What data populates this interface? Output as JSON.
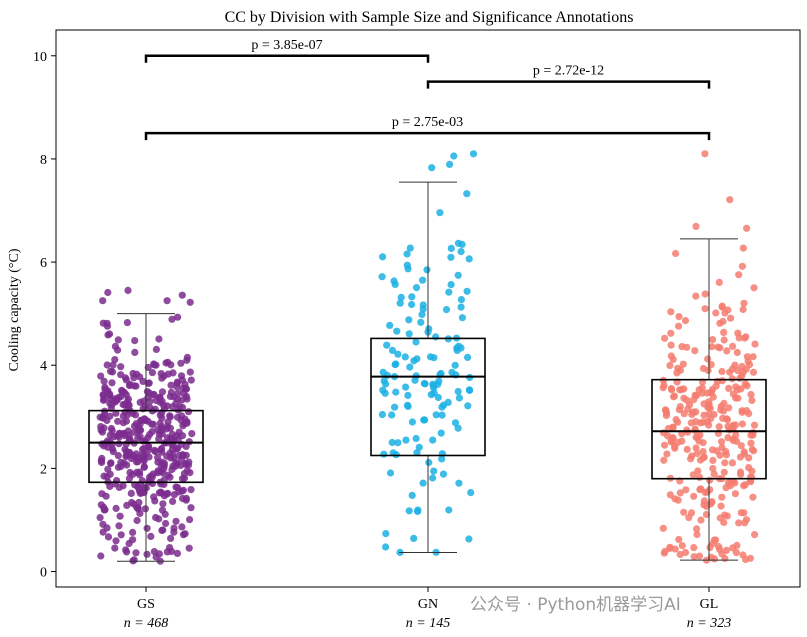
{
  "chart_data": {
    "type": "box",
    "title": "CC by Division with Sample Size and Significance Annotations",
    "xlabel": "",
    "ylabel": "Cooling capacity (°C)",
    "ylim": [
      -0.3,
      10.5
    ],
    "yticks": [
      0,
      2,
      4,
      6,
      8,
      10
    ],
    "categories": [
      "GS",
      "GN",
      "GL"
    ],
    "sample_labels": [
      "n = 468",
      "n = 145",
      "n = 323"
    ],
    "colors": [
      "#7B2D8E",
      "#1BB0E3",
      "#F47C70"
    ],
    "boxes": [
      {
        "name": "GS",
        "n": 468,
        "min": 0.2,
        "q1": 1.73,
        "median": 2.5,
        "q3": 3.12,
        "max": 5.0,
        "points_max": 5.45
      },
      {
        "name": "GN",
        "n": 145,
        "min": 0.37,
        "q1": 2.25,
        "median": 3.78,
        "q3": 4.52,
        "max": 7.55,
        "points_max": 8.1
      },
      {
        "name": "GL",
        "n": 323,
        "min": 0.22,
        "q1": 1.8,
        "median": 2.72,
        "q3": 3.72,
        "max": 6.45,
        "points_max": 8.1
      }
    ],
    "significance": [
      {
        "from": 0,
        "to": 1,
        "y": 10.0,
        "label": "p = 3.85e-07"
      },
      {
        "from": 1,
        "to": 2,
        "y": 9.5,
        "label": "p = 2.72e-12"
      },
      {
        "from": 0,
        "to": 2,
        "y": 8.5,
        "label": "p = 2.75e-03"
      }
    ]
  },
  "watermark": "公众号 · Python机器学习AI"
}
